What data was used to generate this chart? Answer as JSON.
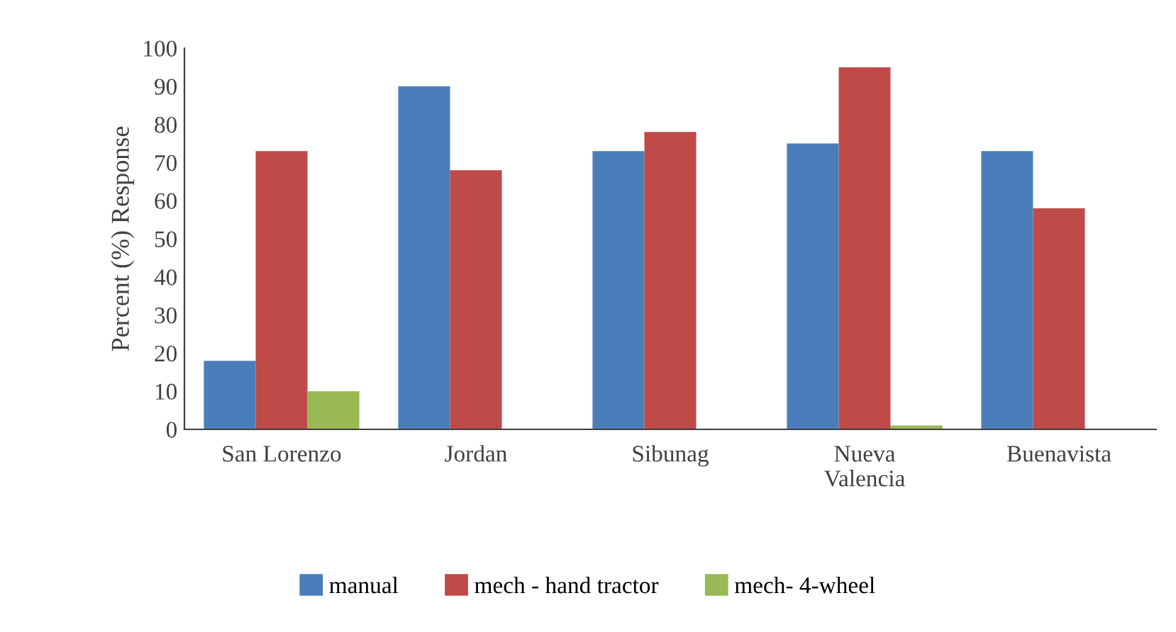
{
  "chart_data": {
    "type": "bar",
    "ylabel": "Percent (%) Response",
    "categories": [
      "San Lorenzo",
      "Jordan",
      "Sibunag",
      "Nueva\nValencia",
      "Buenavista"
    ],
    "series": [
      {
        "name": "manual",
        "color": "#4a7ebb",
        "values": [
          18,
          90,
          73,
          75,
          73
        ]
      },
      {
        "name": "mech - hand tractor",
        "color": "#be4b48",
        "values": [
          73,
          68,
          78,
          95,
          58
        ]
      },
      {
        "name": "mech- 4-wheel",
        "color": "#98b954",
        "values": [
          10,
          0,
          0,
          1,
          0
        ]
      }
    ],
    "ylim": [
      0,
      100
    ],
    "yticks": [
      0,
      10,
      20,
      30,
      40,
      50,
      60,
      70,
      80,
      90,
      100
    ],
    "grid": false,
    "legend": "bottom"
  }
}
